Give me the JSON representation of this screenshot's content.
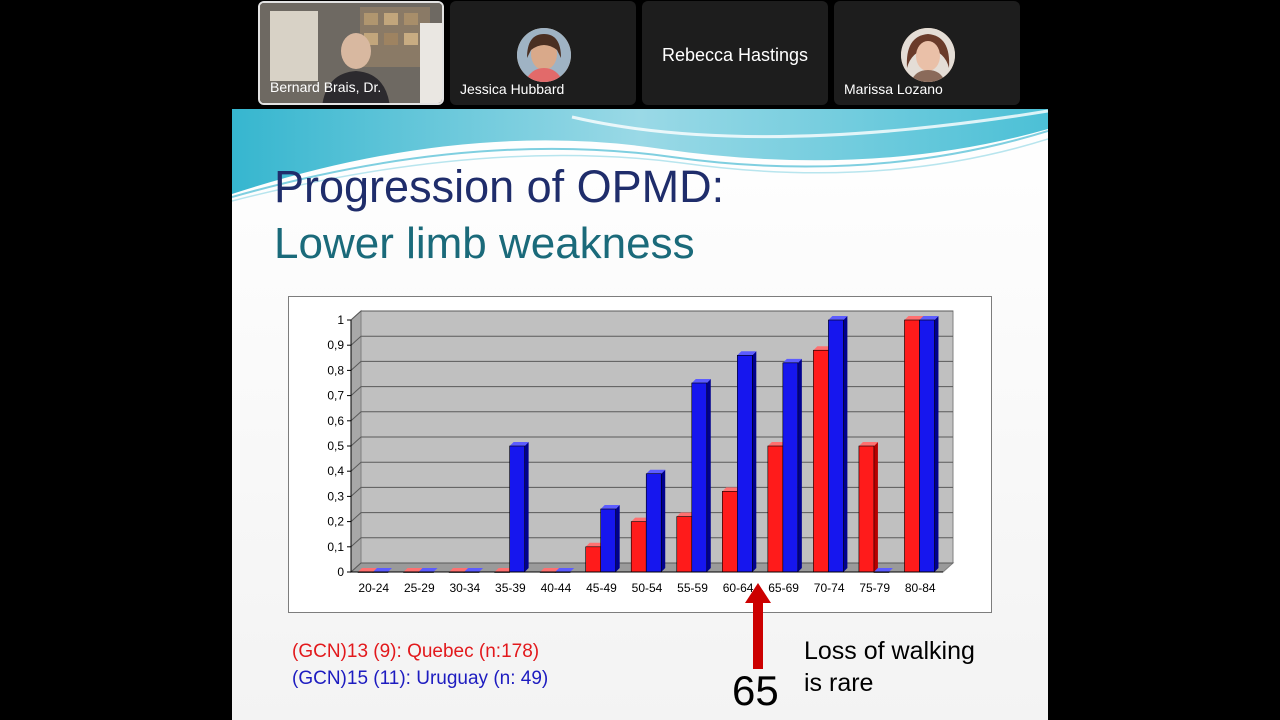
{
  "participants": [
    {
      "name": "Bernard Brais, Dr.",
      "type": "video"
    },
    {
      "name": "Jessica Hubbard",
      "type": "avatar"
    },
    {
      "name": "Rebecca Hastings",
      "type": "name-only"
    },
    {
      "name": "Marissa Lozano",
      "type": "avatar"
    }
  ],
  "slide": {
    "title_line1": "Progression of OPMD:",
    "title_line2": "Lower limb weakness",
    "legend_red": "(GCN)13 (9): Quebec (n:178)",
    "legend_blue": "(GCN)15 (11): Uruguay (n: 49)",
    "marker_value": "65",
    "note_line1": "Loss of walking",
    "note_line2": "is rare"
  },
  "colors": {
    "red": "#ff1b1b",
    "blue": "#1616ee",
    "plot_bg": "#c0c0c0"
  },
  "chart_data": {
    "type": "bar",
    "categories": [
      "20-24",
      "25-29",
      "30-34",
      "35-39",
      "40-44",
      "45-49",
      "50-54",
      "55-59",
      "60-64",
      "65-69",
      "70-74",
      "75-79",
      "80-84"
    ],
    "series": [
      {
        "values": [
          0,
          0,
          0,
          0,
          0,
          0.1,
          0.2,
          0.22,
          0.32,
          0.5,
          0.88,
          0.5,
          1.0
        ]
      },
      {
        "values": [
          0,
          0,
          0,
          0.5,
          0,
          0.25,
          0.39,
          0.75,
          0.86,
          0.83,
          1.0,
          0,
          1.0
        ]
      }
    ],
    "y_ticks": [
      "0",
      "0,1",
      "0,2",
      "0,3",
      "0,4",
      "0,5",
      "0,6",
      "0,7",
      "0,8",
      "0,9",
      "1"
    ],
    "ylim": [
      0,
      1
    ],
    "grid": true
  }
}
